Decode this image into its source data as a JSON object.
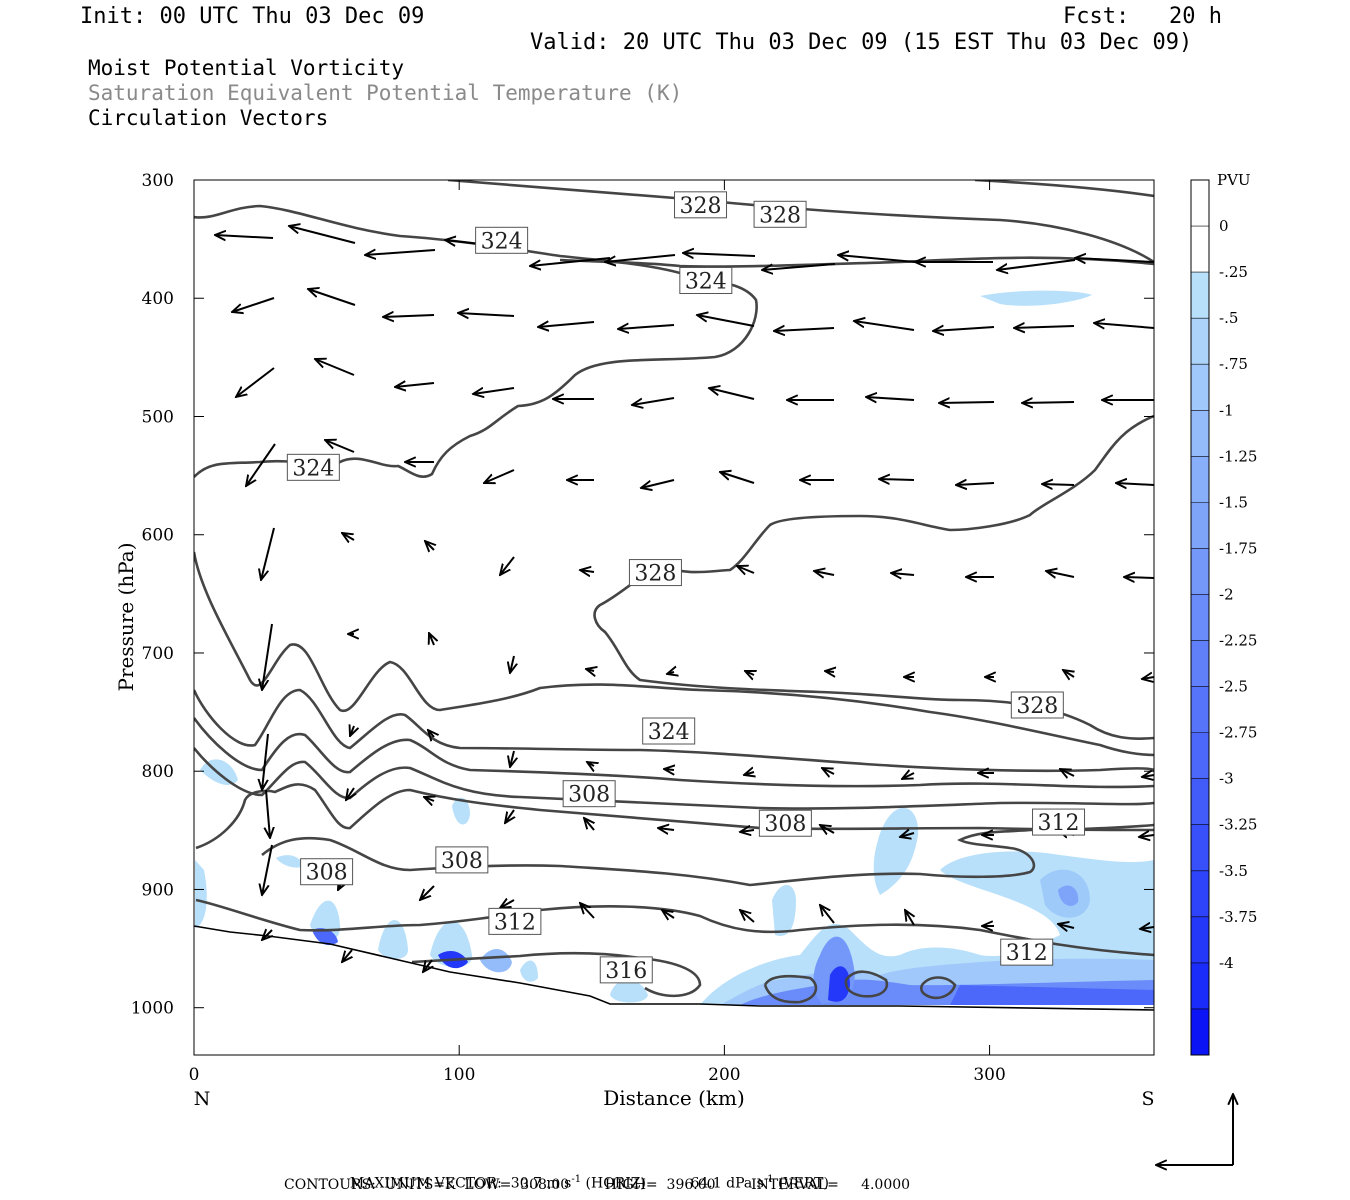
{
  "header": {
    "init": "Init: 00 UTC Thu 03 Dec 09",
    "fcst": "Fcst:   20 h",
    "valid": "Valid: 20 UTC Thu 03 Dec 09 (15 EST Thu 03 Dec 09)"
  },
  "fields": [
    {
      "label": "Moist Potential Vorticity",
      "color": "#000000"
    },
    {
      "label": "Saturation Equivalent Potential Temperature (K)",
      "color": "#8a8a8a"
    },
    {
      "label": "Circulation Vectors",
      "color": "#000000"
    }
  ],
  "chart_data": {
    "type": "contour",
    "xlabel": "Distance (km)",
    "ylabel": "Pressure (hPa)",
    "xlim": [
      0,
      362
    ],
    "ylim": [
      1040,
      300
    ],
    "x_ticks": [
      0,
      100,
      200,
      300
    ],
    "y_ticks": [
      300,
      400,
      500,
      600,
      700,
      800,
      900,
      1000
    ],
    "x_end_labels": {
      "left": "N",
      "right": "S"
    },
    "contour_labels": [
      {
        "text": "328",
        "x": 191,
        "p": 321
      },
      {
        "text": "328",
        "x": 221,
        "p": 329
      },
      {
        "text": "324",
        "x": 116,
        "p": 351
      },
      {
        "text": "324",
        "x": 193,
        "p": 385
      },
      {
        "text": "324",
        "x": 45,
        "p": 543
      },
      {
        "text": "328",
        "x": 174,
        "p": 632
      },
      {
        "text": "328",
        "x": 318,
        "p": 744
      },
      {
        "text": "324",
        "x": 179,
        "p": 766
      },
      {
        "text": "308",
        "x": 149,
        "p": 819
      },
      {
        "text": "308",
        "x": 223,
        "p": 844
      },
      {
        "text": "312",
        "x": 326,
        "p": 843
      },
      {
        "text": "308",
        "x": 50,
        "p": 885
      },
      {
        "text": "308",
        "x": 101,
        "p": 875
      },
      {
        "text": "312",
        "x": 121,
        "p": 927
      },
      {
        "text": "312",
        "x": 314,
        "p": 953
      },
      {
        "text": "316",
        "x": 163,
        "p": 968
      }
    ],
    "colorbar": {
      "unit": "PVU",
      "labels": [
        "0",
        "-.25",
        "-.5",
        "-.75",
        "-1",
        "-1.25",
        "-1.5",
        "-1.75",
        "-2",
        "-2.25",
        "-2.5",
        "-2.75",
        "-3",
        "-3.25",
        "-3.5",
        "-3.75",
        "-4"
      ],
      "colors": [
        "#ffffff",
        "#ffffff",
        "#b8e0fa",
        "#acd4fa",
        "#a0c8fa",
        "#94bcfa",
        "#88b0fa",
        "#7ea4fa",
        "#7498fa",
        "#6a8cfa",
        "#6080fa",
        "#5674fa",
        "#4c68fa",
        "#425cfa",
        "#3850fa",
        "#2e44fa",
        "#2438fa",
        "#1a2cfa",
        "#0a14f5"
      ]
    },
    "max_vector_horiz": "30.7",
    "max_vector_vert": "64.1"
  },
  "footer": {
    "max_vector_prefix": "MAXIMUM VECTOR:",
    "horiz_unit": "m s",
    "horiz_tag": "(HORIZ)",
    "vert_unit": "dPa s",
    "vert_tag": "(VERT)",
    "exponent": "-1",
    "contours": "CONTOURS:  UNITS=K  LOW=  308.00        HIGH=  396.00        INTERVAL=     4.0000"
  }
}
